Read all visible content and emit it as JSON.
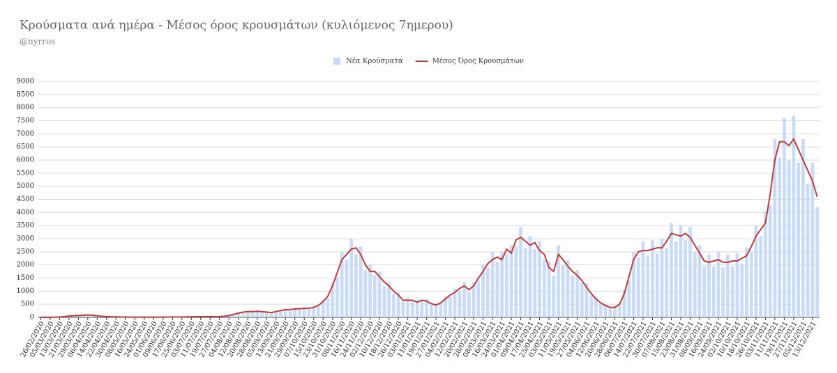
{
  "chart_data": {
    "type": "combo",
    "title": "Κρούσματα ανά ημέρα - Μέσος όρος κρουσμάτων (κυλιόμενος 7ημερου)",
    "subtitle": "@nyrros",
    "legend": "top",
    "grid": true,
    "ylim": [
      0,
      9000
    ],
    "yticks": [
      0,
      500,
      1000,
      1500,
      2000,
      2500,
      3000,
      3500,
      4000,
      4500,
      5000,
      5500,
      6000,
      6500,
      7000,
      7500,
      8000,
      8500,
      9000
    ],
    "categories": [
      "26/02/2020",
      null,
      "05/03/2020",
      null,
      "13/03/2020",
      null,
      "21/03/2020",
      null,
      "29/03/2020",
      null,
      "06/04/2020",
      null,
      "14/04/2020",
      null,
      "22/04/2020",
      null,
      "30/04/2020",
      null,
      "08/05/2020",
      null,
      "16/05/2020",
      null,
      "24/05/2020",
      null,
      "01/06/2020",
      null,
      "09/06/2020",
      null,
      "17/06/2020",
      null,
      "25/06/2020",
      null,
      "03/07/2020",
      null,
      "11/07/2020",
      null,
      "19/07/2020",
      null,
      "27/07/2020",
      null,
      "04/08/2020",
      null,
      "12/08/2020",
      null,
      "20/08/2020",
      null,
      "28/08/2020",
      null,
      "05/09/2020",
      null,
      "13/09/2020",
      null,
      "21/09/2020",
      null,
      "29/09/2020",
      null,
      "07/10/2020",
      null,
      "15/10/2020",
      null,
      "23/10/2020",
      null,
      "31/10/2020",
      null,
      "08/11/2020",
      null,
      "16/11/2020",
      null,
      "24/11/2020",
      null,
      "02/12/2020",
      null,
      "10/12/2020",
      null,
      "18/12/2020",
      null,
      "26/12/2020",
      null,
      "03/01/2021",
      null,
      "11/01/2021",
      null,
      "19/01/2021",
      null,
      "27/01/2021",
      null,
      "04/02/2021",
      null,
      "12/02/2021",
      null,
      "20/02/2021",
      null,
      "28/02/2021",
      null,
      "08/03/2021",
      null,
      "16/03/2021",
      null,
      "24/03/2021",
      null,
      "01/04/2021",
      null,
      "09/04/2021",
      null,
      "17/04/2021",
      null,
      "25/04/2021",
      null,
      "03/05/2021",
      null,
      "11/05/2021",
      null,
      "19/05/2021",
      null,
      "27/05/2021",
      null,
      "04/06/2021",
      null,
      "12/06/2021",
      null,
      "20/06/2021",
      null,
      "28/06/2021",
      null,
      "06/07/2021",
      null,
      "14/07/2021",
      null,
      "22/07/2021",
      null,
      "30/07/2021",
      null,
      "07/08/2021",
      null,
      "15/08/2021",
      null,
      "23/08/2021",
      null,
      "31/08/2021",
      null,
      "08/09/2021",
      null,
      "16/09/2021",
      null,
      "24/09/2021",
      null,
      "02/10/2021",
      null,
      "10/10/2021",
      null,
      "18/10/2021",
      null,
      "26/10/2021",
      null,
      "03/11/2021",
      null,
      "11/11/2021",
      null,
      "19/11/2021",
      null,
      "27/11/2021",
      null,
      "05/12/2021",
      null,
      "13/12/2021",
      null
    ],
    "series": [
      {
        "name": "Νέα Κρούσματα",
        "type": "bar",
        "color": "#c9dbf6",
        "values": [
          0,
          0,
          3,
          6,
          18,
          35,
          60,
          55,
          80,
          90,
          100,
          70,
          70,
          35,
          35,
          18,
          25,
          12,
          12,
          8,
          10,
          4,
          6,
          4,
          6,
          7,
          12,
          9,
          14,
          13,
          18,
          18,
          24,
          22,
          30,
          27,
          35,
          22,
          35,
          36,
          80,
          100,
          180,
          180,
          250,
          200,
          260,
          200,
          230,
          160,
          250,
          235,
          330,
          270,
          360,
          300,
          390,
          320,
          430,
          410,
          680,
          720,
          1350,
          1550,
          2500,
          2200,
          3000,
          2400,
          2700,
          1800,
          2000,
          1600,
          1750,
          1200,
          1350,
          900,
          950,
          600,
          750,
          600,
          650,
          600,
          700,
          480,
          530,
          500,
          800,
          780,
          1100,
          1000,
          1350,
          950,
          1350,
          1400,
          2000,
          1900,
          2500,
          2100,
          2500,
          2400,
          2750,
          2700,
          3450,
          2650,
          3100,
          2600,
          2900,
          2200,
          2150,
          1600,
          2750,
          2000,
          2200,
          1600,
          1800,
          1300,
          1300,
          820,
          800,
          500,
          500,
          350,
          430,
          460,
          1050,
          1400,
          2500,
          2300,
          2900,
          2350,
          2950,
          2450,
          3000,
          2650,
          3600,
          2900,
          3500,
          2950,
          3450,
          2500,
          2750,
          1950,
          2400,
          1950,
          2500,
          1900,
          2400,
          1950,
          2450,
          2050,
          2650,
          2500,
          3500,
          3100,
          4050,
          4300,
          6800,
          6100,
          7600,
          6000,
          7700,
          5900,
          6800,
          5100,
          5900,
          4200
        ]
      },
      {
        "name": "Μέσος Όρος Κρουσμάτων",
        "type": "line",
        "color": "#bf3b3b",
        "values": [
          0,
          0,
          2,
          5,
          15,
          30,
          50,
          60,
          70,
          80,
          90,
          80,
          60,
          40,
          30,
          20,
          20,
          15,
          10,
          10,
          8,
          5,
          5,
          5,
          5,
          8,
          10,
          10,
          12,
          15,
          15,
          20,
          20,
          25,
          25,
          30,
          30,
          25,
          30,
          40,
          70,
          110,
          160,
          200,
          220,
          220,
          230,
          220,
          200,
          180,
          220,
          260,
          290,
          300,
          320,
          330,
          340,
          350,
          380,
          450,
          600,
          800,
          1200,
          1700,
          2200,
          2400,
          2600,
          2650,
          2400,
          2000,
          1750,
          1750,
          1550,
          1350,
          1200,
          1000,
          850,
          650,
          650,
          650,
          580,
          650,
          620,
          520,
          470,
          550,
          700,
          850,
          950,
          1100,
          1200,
          1050,
          1200,
          1500,
          1750,
          2050,
          2200,
          2300,
          2200,
          2600,
          2450,
          2950,
          3050,
          2900,
          2750,
          2850,
          2550,
          2400,
          1900,
          1750,
          2400,
          2200,
          1950,
          1750,
          1600,
          1400,
          1150,
          900,
          700,
          550,
          450,
          380,
          380,
          500,
          900,
          1550,
          2200,
          2500,
          2550,
          2550,
          2600,
          2650,
          2650,
          2900,
          3200,
          3150,
          3100,
          3200,
          3050,
          2750,
          2450,
          2150,
          2100,
          2150,
          2200,
          2100,
          2100,
          2150,
          2150,
          2250,
          2350,
          2700,
          3100,
          3350,
          3600,
          4700,
          6000,
          6700,
          6700,
          6550,
          6800,
          6400,
          6000,
          5600,
          5200,
          4600
        ]
      }
    ]
  }
}
